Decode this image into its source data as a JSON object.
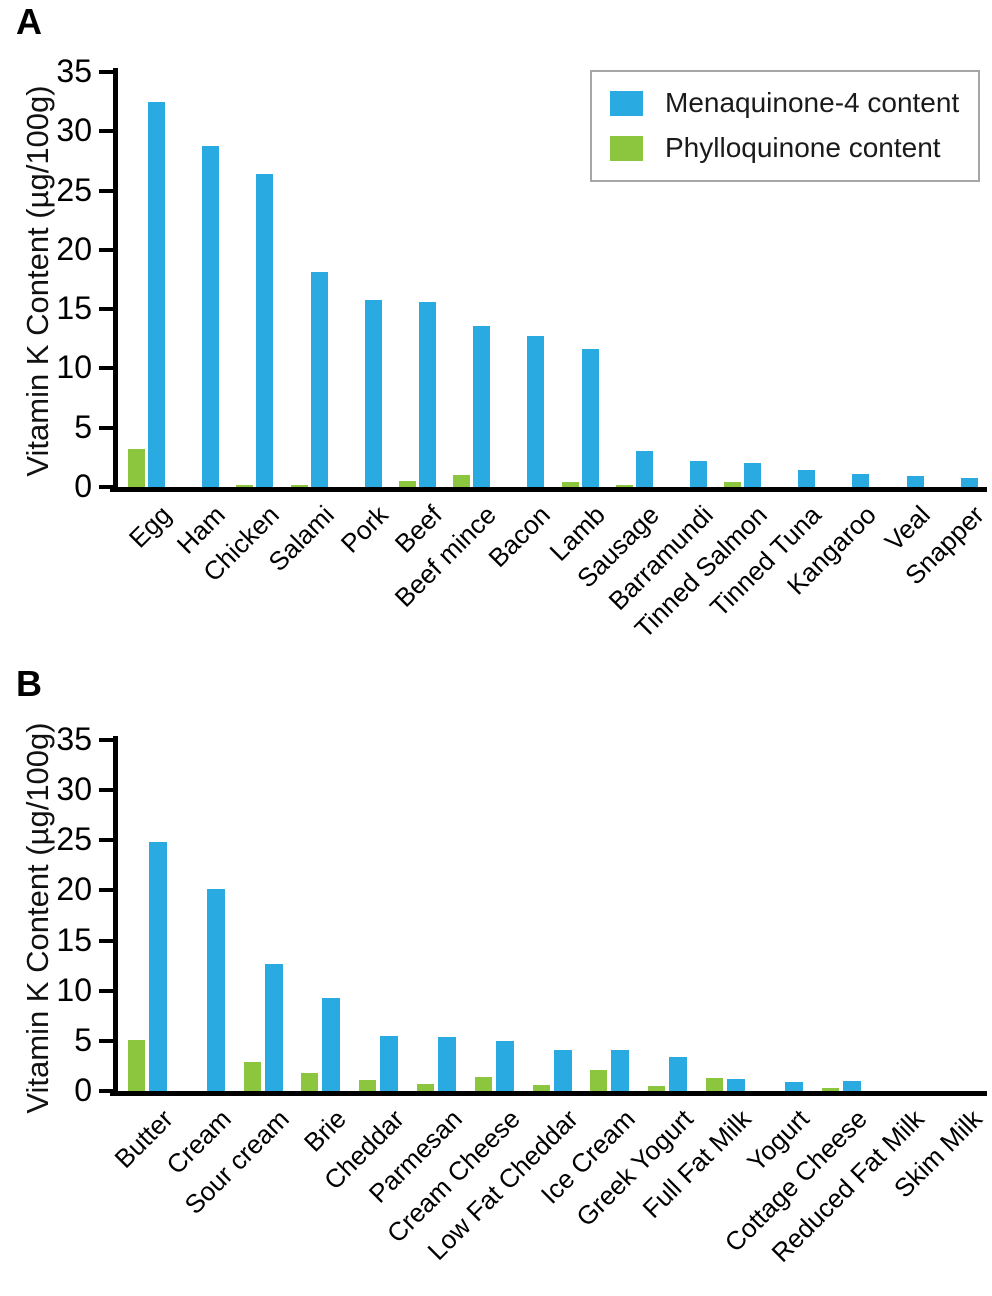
{
  "figure": {
    "panel_a_label": "A",
    "panel_b_label": "B",
    "y_axis_title": "Vitamin K Content (µg/100g)"
  },
  "legend": {
    "items": [
      {
        "label": "Menaquinone-4 content",
        "color": "#29abe2"
      },
      {
        "label": "Phylloquinone content",
        "color": "#8cc63f"
      }
    ]
  },
  "chart_data": [
    {
      "type": "bar",
      "panel": "A",
      "ylabel": "Vitamin K Content (µg/100g)",
      "ylim": [
        0,
        35
      ],
      "yticks": [
        0,
        5,
        10,
        15,
        20,
        25,
        30,
        35
      ],
      "grid": false,
      "legend_position": "top-right",
      "categories": [
        "Egg",
        "Ham",
        "Chicken",
        "Salami",
        "Pork",
        "Beef",
        "Beef mince",
        "Bacon",
        "Lamb",
        "Sausage",
        "Barramundi",
        "Tinned Salmon",
        "Tinned Tuna",
        "Kangaroo",
        "Veal",
        "Snapper"
      ],
      "series": [
        {
          "name": "Menaquinone-4 content",
          "color": "#29abe2",
          "values": [
            32.5,
            28.8,
            26.4,
            18.1,
            15.8,
            15.6,
            13.6,
            12.7,
            11.6,
            3.0,
            2.2,
            2.0,
            1.4,
            1.1,
            0.9,
            0.8
          ]
        },
        {
          "name": "Phylloquinone content",
          "color": "#8cc63f",
          "values": [
            3.2,
            0,
            0.2,
            0.2,
            0,
            0.5,
            1.0,
            0,
            0.4,
            0.2,
            0,
            0.4,
            0,
            0,
            0,
            0
          ]
        }
      ]
    },
    {
      "type": "bar",
      "panel": "B",
      "ylabel": "Vitamin K Content (µg/100g)",
      "ylim": [
        0,
        35
      ],
      "yticks": [
        0,
        5,
        10,
        15,
        20,
        25,
        30,
        35
      ],
      "grid": false,
      "legend_position": "none",
      "categories": [
        "Butter",
        "Cream",
        "Sour cream",
        "Brie",
        "Cheddar",
        "Parmesan",
        "Cream Cheese",
        "Low Fat Cheddar",
        "Ice Cream",
        "Greek Yogurt",
        "Full Fat Milk",
        "Yogurt",
        "Cottage Cheese",
        "Reduced Fat Milk",
        "Skim Milk"
      ],
      "series": [
        {
          "name": "Menaquinone-4 content",
          "color": "#29abe2",
          "values": [
            24.8,
            20.1,
            12.7,
            9.3,
            5.5,
            5.4,
            5.0,
            4.1,
            4.1,
            3.4,
            1.2,
            0.9,
            1.0,
            0,
            0
          ]
        },
        {
          "name": "Phylloquinone content",
          "color": "#8cc63f",
          "values": [
            5.1,
            0,
            2.9,
            1.8,
            1.1,
            0.7,
            1.4,
            0.6,
            2.1,
            0.5,
            1.3,
            0,
            0.3,
            0,
            0
          ]
        }
      ]
    }
  ]
}
